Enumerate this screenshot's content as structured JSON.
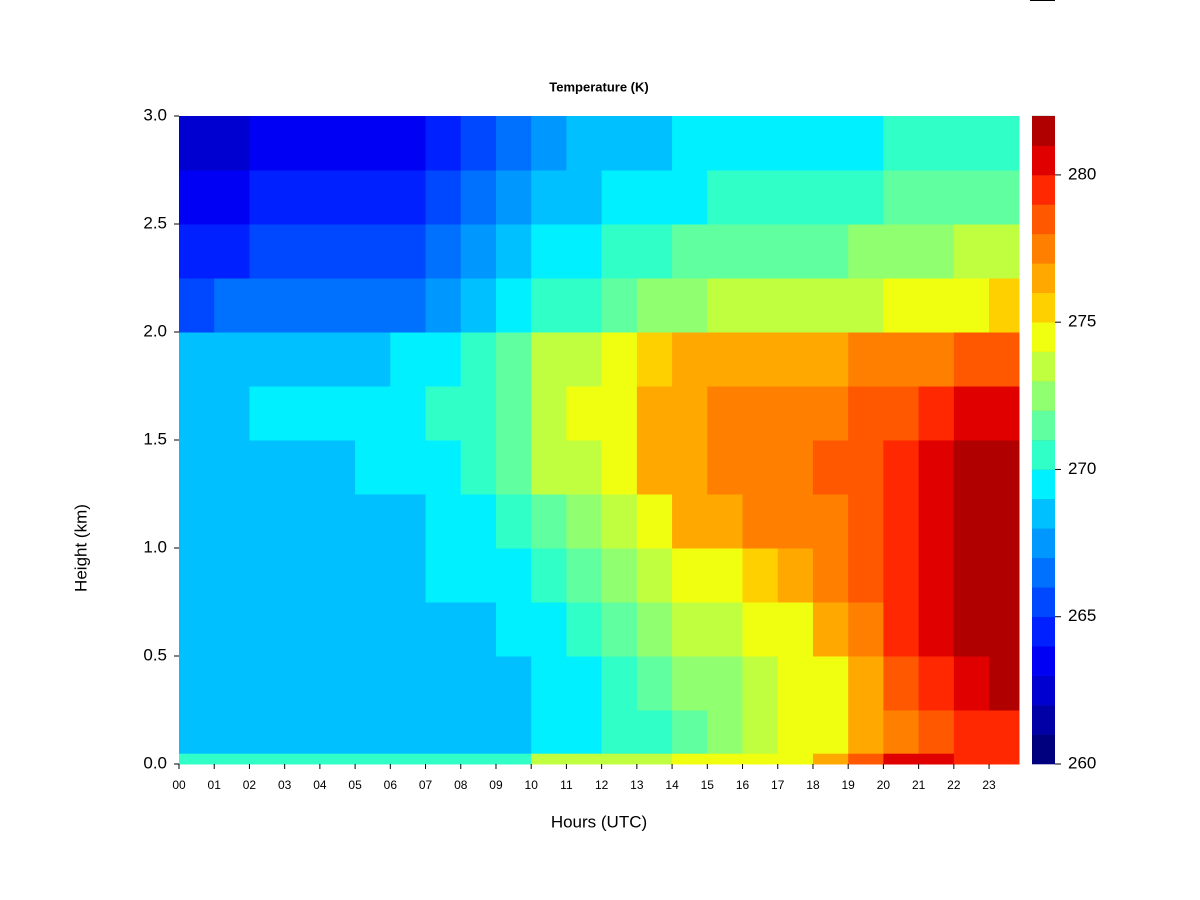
{
  "chart_data": {
    "type": "heatmap",
    "title": "Temperature (K)",
    "x_label": "Hours (UTC)",
    "y_label": "Height (km)",
    "xlim": [
      0,
      23.85
    ],
    "ylim": [
      0,
      3.0
    ],
    "xticks": [
      {
        "value": 0,
        "label": "00"
      },
      {
        "value": 1,
        "label": "01"
      },
      {
        "value": 2,
        "label": "02"
      },
      {
        "value": 3,
        "label": "03"
      },
      {
        "value": 4,
        "label": "04"
      },
      {
        "value": 5,
        "label": "05"
      },
      {
        "value": 6,
        "label": "06"
      },
      {
        "value": 7,
        "label": "07"
      },
      {
        "value": 8,
        "label": "08"
      },
      {
        "value": 9,
        "label": "09"
      },
      {
        "value": 10,
        "label": "10"
      },
      {
        "value": 11,
        "label": "11"
      },
      {
        "value": 12,
        "label": "12"
      },
      {
        "value": 13,
        "label": "13"
      },
      {
        "value": 14,
        "label": "14"
      },
      {
        "value": 15,
        "label": "15"
      },
      {
        "value": 16,
        "label": "16"
      },
      {
        "value": 17,
        "label": "17"
      },
      {
        "value": 18,
        "label": "18"
      },
      {
        "value": 19,
        "label": "19"
      },
      {
        "value": 20,
        "label": "20"
      },
      {
        "value": 21,
        "label": "21"
      },
      {
        "value": 22,
        "label": "22"
      },
      {
        "value": 23,
        "label": "23"
      }
    ],
    "yticks": [
      {
        "value": 0,
        "label": "0.0"
      },
      0.5,
      {
        "value": 1,
        "label": "1.0"
      },
      1.5,
      {
        "value": 2,
        "label": "2.0"
      },
      2.5,
      {
        "value": 3,
        "label": "3.0"
      }
    ],
    "x_bins": [
      0,
      1,
      2,
      3,
      4,
      5,
      6,
      7,
      8,
      9,
      10,
      11,
      12,
      13,
      14,
      15,
      16,
      17,
      18,
      19,
      20,
      21,
      22,
      23,
      23.85
    ],
    "y_bins": [
      0,
      0.05,
      0.25,
      0.5,
      0.75,
      1.0,
      1.25,
      1.5,
      1.75,
      2.0,
      2.25,
      2.5,
      2.75,
      3.0
    ],
    "z": [
      [
        270.5,
        270.5,
        270.5,
        270.5,
        270.5,
        270.5,
        270.5,
        270.5,
        270.5,
        270.5,
        273,
        273,
        273,
        273,
        274.5,
        274.5,
        274.5,
        275,
        276,
        278,
        280,
        280,
        279,
        279
      ],
      [
        268.5,
        268.5,
        268.5,
        268.5,
        268.5,
        268.5,
        268.5,
        268.5,
        268.5,
        268.5,
        269,
        269.5,
        270,
        270.5,
        271,
        272,
        273,
        274,
        275,
        276,
        277.5,
        278.5,
        279,
        279
      ],
      [
        268.5,
        268,
        268,
        268.5,
        268.5,
        268.5,
        268.5,
        268.5,
        268.5,
        268.5,
        269,
        269.5,
        270,
        271,
        272,
        272.5,
        273,
        274,
        275,
        276.5,
        278,
        279.5,
        280.5,
        281
      ],
      [
        268.5,
        268,
        268,
        268.5,
        268.5,
        268.5,
        268.5,
        268.5,
        268.5,
        269,
        269.5,
        270.5,
        271,
        272,
        273,
        273.5,
        274,
        275,
        276,
        277.5,
        279,
        280,
        281,
        281.5
      ],
      [
        268.5,
        268,
        268.5,
        268.5,
        268.5,
        268.5,
        268.5,
        269,
        269,
        269.5,
        270.5,
        271.5,
        272.5,
        273.5,
        274.5,
        275,
        275.5,
        276,
        277,
        278,
        279,
        280,
        281,
        281.5
      ],
      [
        268.5,
        268.5,
        268.5,
        268.5,
        268.5,
        268.5,
        268.5,
        269,
        269.5,
        270,
        271.5,
        272.5,
        273.5,
        275,
        276,
        276.5,
        277,
        277,
        277.5,
        278,
        279,
        280,
        281,
        281.5
      ],
      [
        268.5,
        268.5,
        268.5,
        268.5,
        268.5,
        269,
        269,
        269.5,
        270,
        271,
        273,
        273.5,
        274.5,
        276,
        276.5,
        277,
        277.5,
        277.5,
        278,
        278.5,
        279,
        280,
        281,
        281
      ],
      [
        268.5,
        268.5,
        269,
        269,
        269,
        269,
        269.5,
        270,
        270.5,
        271.5,
        273.5,
        274,
        274.5,
        276,
        276.5,
        277,
        277,
        277,
        277.5,
        278,
        278.5,
        279,
        280,
        280
      ],
      [
        268,
        268,
        268,
        268.5,
        268.5,
        268.5,
        269,
        269.5,
        270,
        271,
        273,
        273.5,
        274,
        275.5,
        276,
        276,
        276,
        276,
        276.5,
        277,
        277,
        277.5,
        278,
        278.5
      ],
      [
        265,
        266,
        266,
        266.5,
        266.5,
        266,
        266.5,
        267.5,
        268,
        269,
        270,
        270.5,
        271,
        272,
        272.5,
        273,
        273,
        273,
        273,
        273.5,
        274,
        274.5,
        275,
        275.5
      ],
      [
        264,
        264.5,
        265,
        265.5,
        265,
        265,
        265.5,
        266.5,
        267,
        268,
        269,
        269.5,
        270,
        270.5,
        271,
        271,
        271.5,
        271.5,
        271.5,
        272,
        272,
        272.5,
        273,
        273
      ],
      [
        263,
        263.5,
        264,
        264.5,
        264,
        264,
        264.5,
        265.5,
        266.5,
        267,
        268,
        268.5,
        269,
        269.5,
        269.5,
        270,
        270,
        270.5,
        270.5,
        270.5,
        271,
        271,
        271.5,
        271.5
      ],
      [
        262,
        262.5,
        263,
        263.5,
        263,
        263,
        263.5,
        264.5,
        265.5,
        266.5,
        267.5,
        268,
        268.5,
        268.5,
        269,
        269,
        269,
        269.5,
        269.5,
        269.5,
        270,
        270,
        270.5,
        270.5
      ]
    ],
    "colorbar": {
      "clim": [
        260,
        282
      ],
      "ticks": [
        260,
        265,
        270,
        275,
        280
      ],
      "colors": [
        "#00007f",
        "#0000a6",
        "#0000d0",
        "#0000f5",
        "#0020ff",
        "#0048ff",
        "#0070ff",
        "#0098ff",
        "#00c0ff",
        "#00f0ff",
        "#30ffc8",
        "#60ffa0",
        "#90ff70",
        "#c0ff40",
        "#f0ff10",
        "#ffd000",
        "#ffa800",
        "#ff8000",
        "#ff5800",
        "#ff2800",
        "#e00000",
        "#b00000"
      ]
    }
  }
}
